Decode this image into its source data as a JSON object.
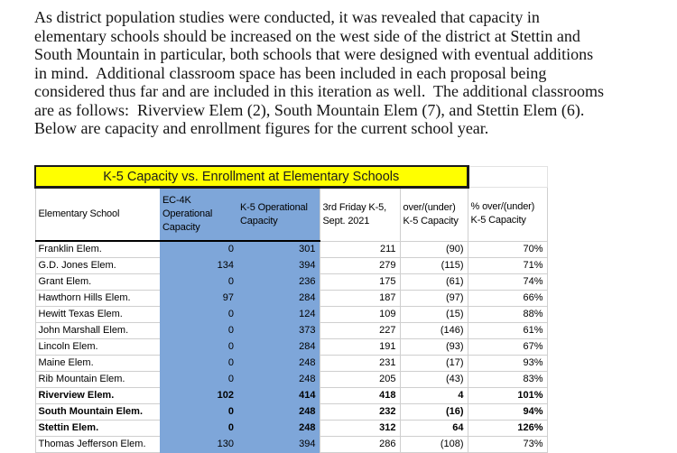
{
  "intro": {
    "lines": [
      "As district population studies were conducted, it was revealed that capacity in",
      "elementary schools should be increased on the west side of the district at Stettin and",
      "South Mountain in particular, both schools that were designed with eventual additions",
      "in mind.  Additional classroom space has been included in each proposal being",
      "considered thus far and are included in this iteration as well.  The additional classrooms",
      "are as follows:  Riverview Elem (2), South Mountain Elem (7), and Stettin Elem (6).",
      "Below are capacity and enrollment figures for the current school year."
    ]
  },
  "table": {
    "title": "K-5 Capacity vs. Enrollment at Elementary Schools",
    "columns": [
      "Elementary School",
      "EC-4K Operational Capacity",
      "K-5 Operational Capacity",
      "3rd Friday K-5, Sept. 2021",
      "over/(under) K-5 Capacity",
      "% over/(under) K-5 Capacity"
    ],
    "rows": [
      {
        "school": "Franklin Elem.",
        "ec4k_capacity": "0",
        "k5_capacity": "301",
        "third_friday": "211",
        "over_under": "(90)",
        "pct_over_under": "70%",
        "bold": false
      },
      {
        "school": "G.D. Jones Elem.",
        "ec4k_capacity": "134",
        "k5_capacity": "394",
        "third_friday": "279",
        "over_under": "(115)",
        "pct_over_under": "71%",
        "bold": false
      },
      {
        "school": "Grant Elem.",
        "ec4k_capacity": "0",
        "k5_capacity": "236",
        "third_friday": "175",
        "over_under": "(61)",
        "pct_over_under": "74%",
        "bold": false
      },
      {
        "school": "Hawthorn Hills Elem.",
        "ec4k_capacity": "97",
        "k5_capacity": "284",
        "third_friday": "187",
        "over_under": "(97)",
        "pct_over_under": "66%",
        "bold": false
      },
      {
        "school": "Hewitt Texas Elem.",
        "ec4k_capacity": "0",
        "k5_capacity": "124",
        "third_friday": "109",
        "over_under": "(15)",
        "pct_over_under": "88%",
        "bold": false
      },
      {
        "school": "John Marshall Elem.",
        "ec4k_capacity": "0",
        "k5_capacity": "373",
        "third_friday": "227",
        "over_under": "(146)",
        "pct_over_under": "61%",
        "bold": false
      },
      {
        "school": "Lincoln Elem.",
        "ec4k_capacity": "0",
        "k5_capacity": "284",
        "third_friday": "191",
        "over_under": "(93)",
        "pct_over_under": "67%",
        "bold": false
      },
      {
        "school": "Maine Elem.",
        "ec4k_capacity": "0",
        "k5_capacity": "248",
        "third_friday": "231",
        "over_under": "(17)",
        "pct_over_under": "93%",
        "bold": false
      },
      {
        "school": "Rib Mountain Elem.",
        "ec4k_capacity": "0",
        "k5_capacity": "248",
        "third_friday": "205",
        "over_under": "(43)",
        "pct_over_under": "83%",
        "bold": false
      },
      {
        "school": "Riverview Elem.",
        "ec4k_capacity": "102",
        "k5_capacity": "414",
        "third_friday": "418",
        "over_under": "4",
        "pct_over_under": "101%",
        "bold": true
      },
      {
        "school": "South Mountain Elem.",
        "ec4k_capacity": "0",
        "k5_capacity": "248",
        "third_friday": "232",
        "over_under": "(16)",
        "pct_over_under": "94%",
        "bold": true
      },
      {
        "school": "Stettin Elem.",
        "ec4k_capacity": "0",
        "k5_capacity": "248",
        "third_friday": "312",
        "over_under": "64",
        "pct_over_under": "126%",
        "bold": true
      },
      {
        "school": "Thomas Jefferson Elem.",
        "ec4k_capacity": "130",
        "k5_capacity": "394",
        "third_friday": "286",
        "over_under": "(108)",
        "pct_over_under": "73%",
        "bold": false
      }
    ],
    "colors": {
      "title_bg": "#ffff00",
      "capacity_fill": "#7ea6d9",
      "gridline": "#cfcfcf",
      "header_rule": "#000000"
    }
  }
}
